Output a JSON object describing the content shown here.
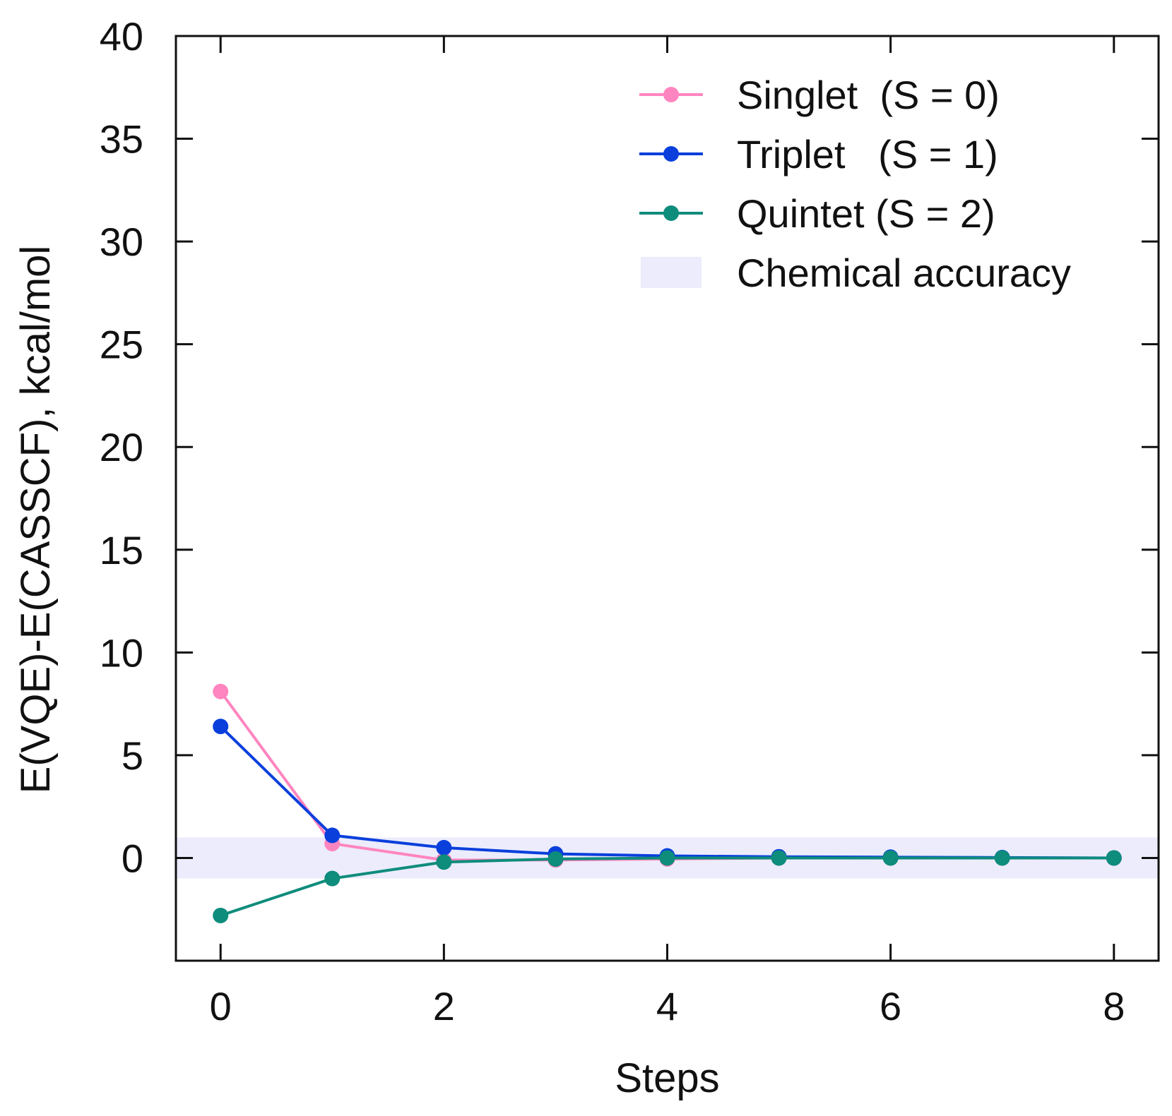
{
  "chart_data": {
    "type": "line",
    "title": "",
    "xlabel": "Steps",
    "ylabel": "E(VQE)-E(CASSCF), kcal/mol",
    "xlim": [
      -0.4,
      8.4
    ],
    "ylim": [
      -5,
      40
    ],
    "xticks": [
      0,
      2,
      4,
      6,
      8
    ],
    "yticks": [
      0,
      5,
      10,
      15,
      20,
      25,
      30,
      35,
      40
    ],
    "grid": false,
    "legend_position": "top-right",
    "x": [
      0,
      1,
      2,
      3,
      4,
      5,
      6,
      7,
      8
    ],
    "series": [
      {
        "name": "Singlet  (S = 0)",
        "color": "#ff85c0",
        "values": [
          8.1,
          0.7,
          -0.1,
          -0.1,
          -0.05,
          0.0,
          0.0,
          0.0,
          0.0
        ]
      },
      {
        "name": "Triplet   (S = 1)",
        "color": "#0a3fdc",
        "values": [
          6.4,
          1.1,
          0.5,
          0.2,
          0.1,
          0.06,
          0.04,
          0.02,
          0.0
        ]
      },
      {
        "name": "Quintet (S = 2)",
        "color": "#0e8c7c",
        "values": [
          -2.8,
          -1.0,
          -0.2,
          -0.05,
          0.0,
          0.0,
          0.0,
          0.0,
          0.0
        ]
      }
    ],
    "band": {
      "name": "Chemical accuracy",
      "y_min": -1.0,
      "y_max": 1.0,
      "color": "#ececfc"
    }
  }
}
